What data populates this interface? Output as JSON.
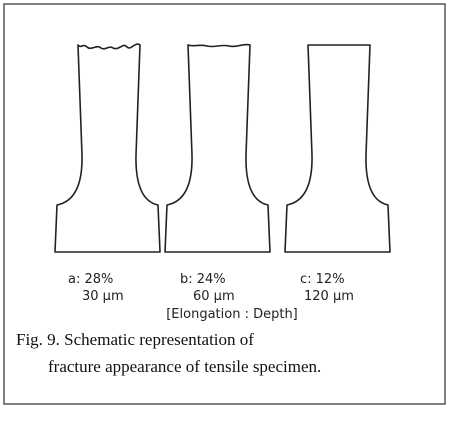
{
  "figure": {
    "specimens": [
      {
        "label": "a: 28%",
        "depth": "30 μm"
      },
      {
        "label": "b: 24%",
        "depth": "60 μm"
      },
      {
        "label": "c: 12%",
        "depth": "120 μm"
      }
    ],
    "legend": "[Elongation : Depth]",
    "caption": [
      "Fig. 9. Schematic representation of",
      "fracture appearance of tensile specimen."
    ]
  }
}
